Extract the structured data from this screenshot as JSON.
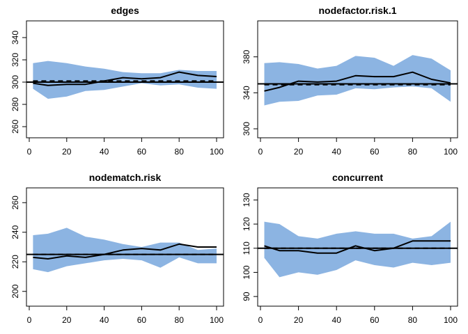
{
  "figure": {
    "colors": {
      "band": "#8CB4E2",
      "line": "#000000",
      "reference": "#000000",
      "background": "#ffffff"
    }
  },
  "chart_data": [
    {
      "type": "line",
      "title": "edges",
      "xlim": [
        0,
        100
      ],
      "ylim": [
        250,
        355
      ],
      "xticks": [
        0,
        20,
        40,
        60,
        80,
        100
      ],
      "yticks": [
        260,
        280,
        300,
        320,
        340
      ],
      "reference_value": 300,
      "series": [
        {
          "style": "dashed",
          "values": [
            301,
            301,
            301,
            301,
            301,
            301,
            301,
            301,
            301,
            301,
            301
          ]
        },
        {
          "style": "solid",
          "values": [
            299,
            297,
            298,
            298,
            301,
            304,
            303,
            304,
            309,
            306,
            305
          ]
        },
        {
          "style": "band",
          "upper": [
            317,
            319,
            317,
            314,
            312,
            309,
            308,
            308,
            311,
            310,
            310
          ],
          "lower": [
            294,
            285,
            287,
            292,
            293,
            296,
            299,
            297,
            298,
            295,
            294
          ]
        }
      ],
      "x": [
        2,
        10,
        20,
        30,
        40,
        50,
        60,
        70,
        80,
        90,
        100
      ]
    },
    {
      "type": "line",
      "title": "nodefactor.risk.1",
      "xlim": [
        0,
        100
      ],
      "ylim": [
        290,
        420
      ],
      "xticks": [
        0,
        20,
        40,
        60,
        80,
        100
      ],
      "yticks": [
        300,
        340,
        380
      ],
      "reference_value": 350,
      "series": [
        {
          "style": "dashed",
          "values": [
            349,
            349,
            349,
            349,
            349,
            349,
            349,
            349,
            349,
            349,
            349
          ]
        },
        {
          "style": "solid",
          "values": [
            342,
            346,
            353,
            352,
            353,
            359,
            358,
            358,
            363,
            355,
            351
          ]
        },
        {
          "style": "band",
          "upper": [
            373,
            374,
            372,
            367,
            370,
            381,
            379,
            370,
            382,
            378,
            365
          ],
          "lower": [
            326,
            330,
            331,
            337,
            338,
            345,
            344,
            346,
            347,
            345,
            330
          ]
        }
      ],
      "x": [
        2,
        10,
        20,
        30,
        40,
        50,
        60,
        70,
        80,
        90,
        100
      ]
    },
    {
      "type": "line",
      "title": "nodematch.risk",
      "xlim": [
        0,
        100
      ],
      "ylim": [
        190,
        270
      ],
      "xticks": [
        0,
        20,
        40,
        60,
        80,
        100
      ],
      "yticks": [
        200,
        220,
        240,
        260
      ],
      "reference_value": 225,
      "series": [
        {
          "style": "dashed",
          "values": [
            225,
            225,
            225,
            225,
            225,
            225,
            225,
            225,
            225,
            225,
            225
          ]
        },
        {
          "style": "solid",
          "values": [
            223,
            222,
            224,
            223,
            225,
            228,
            229,
            228,
            232,
            230,
            230
          ]
        },
        {
          "style": "band",
          "upper": [
            238,
            239,
            243,
            237,
            235,
            232,
            230,
            233,
            233,
            228,
            229
          ],
          "lower": [
            215,
            213,
            217,
            219,
            221,
            222,
            221,
            216,
            223,
            219,
            219
          ]
        }
      ],
      "x": [
        2,
        10,
        20,
        30,
        40,
        50,
        60,
        70,
        80,
        90,
        100
      ]
    },
    {
      "type": "line",
      "title": "concurrent",
      "xlim": [
        0,
        100
      ],
      "ylim": [
        86,
        135
      ],
      "xticks": [
        0,
        20,
        40,
        60,
        80,
        100
      ],
      "yticks": [
        90,
        100,
        110,
        120,
        130
      ],
      "reference_value": 110,
      "series": [
        {
          "style": "dashed",
          "values": [
            110,
            110,
            110,
            110,
            110,
            110,
            110,
            110,
            110,
            110,
            110
          ]
        },
        {
          "style": "solid",
          "values": [
            111,
            109,
            109,
            108,
            108,
            111,
            109,
            110,
            113,
            113,
            113
          ]
        },
        {
          "style": "band",
          "upper": [
            121,
            120,
            115,
            114,
            116,
            117,
            116,
            116,
            114,
            115,
            121
          ],
          "lower": [
            106,
            98,
            100,
            99,
            101,
            105,
            103,
            102,
            104,
            103,
            104
          ]
        }
      ],
      "x": [
        2,
        10,
        20,
        30,
        40,
        50,
        60,
        70,
        80,
        90,
        100
      ]
    }
  ]
}
